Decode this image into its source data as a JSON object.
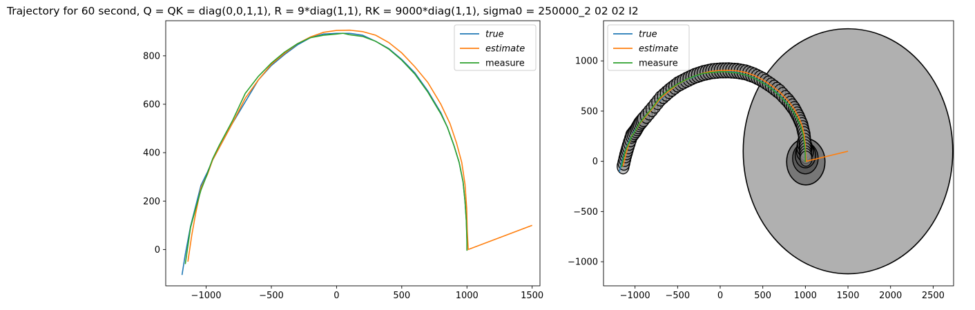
{
  "figure": {
    "title": "Trajectory for 60 second, Q = QK = diag(0,0,1,1), R = 9*diag(1,1), RK = 9000*diag(1,1), sigma0 = 250000_2 02 02 I2"
  },
  "colors": {
    "true": "#1f77b4",
    "estimate": "#ff7f0e",
    "measure": "#2ca02c",
    "ellipse_fill": "#b0b0b0",
    "ellipse_edge": "#000000"
  },
  "chart_data": [
    {
      "type": "line",
      "title": "",
      "xlabel": "",
      "ylabel": "",
      "xlim": [
        -1310,
        1560
      ],
      "ylim": [
        -150,
        945
      ],
      "xticks": [
        -1000,
        -500,
        0,
        500,
        1000,
        1500
      ],
      "xtick_labels": [
        "−1000",
        "−500",
        "0",
        "500",
        "1000",
        "1500"
      ],
      "yticks": [
        0,
        200,
        400,
        600,
        800
      ],
      "ytick_labels": [
        "0",
        "200",
        "400",
        "600",
        "800"
      ],
      "legend": {
        "position": "top-right",
        "entries": [
          "true",
          "estimate",
          "measure"
        ],
        "italic": [
          true,
          true,
          false
        ]
      },
      "series": [
        {
          "name": "true",
          "key": "true",
          "points": [
            [
              -1185,
              -105
            ],
            [
              -1160,
              -20
            ],
            [
              -1120,
              95
            ],
            [
              -1080,
              180
            ],
            [
              -1040,
              265
            ],
            [
              -990,
              320
            ],
            [
              -950,
              370
            ],
            [
              -900,
              420
            ],
            [
              -800,
              520
            ],
            [
              -700,
              610
            ],
            [
              -600,
              700
            ],
            [
              -500,
              760
            ],
            [
              -400,
              805
            ],
            [
              -300,
              845
            ],
            [
              -200,
              875
            ],
            [
              -100,
              890
            ],
            [
              0,
              893
            ],
            [
              100,
              893
            ],
            [
              200,
              885
            ],
            [
              300,
              860
            ],
            [
              400,
              830
            ],
            [
              500,
              785
            ],
            [
              600,
              730
            ],
            [
              700,
              655
            ],
            [
              800,
              565
            ],
            [
              850,
              505
            ],
            [
              900,
              430
            ],
            [
              940,
              360
            ],
            [
              970,
              280
            ],
            [
              985,
              200
            ],
            [
              995,
              120
            ],
            [
              1000,
              40
            ],
            [
              1000,
              0
            ]
          ]
        },
        {
          "name": "estimate",
          "key": "estimate",
          "points": [
            [
              -1140,
              -50
            ],
            [
              -1110,
              60
            ],
            [
              -1080,
              150
            ],
            [
              -1040,
              255
            ],
            [
              -990,
              310
            ],
            [
              -950,
              370
            ],
            [
              -900,
              420
            ],
            [
              -800,
              520
            ],
            [
              -700,
              625
            ],
            [
              -600,
              700
            ],
            [
              -500,
              765
            ],
            [
              -400,
              810
            ],
            [
              -300,
              850
            ],
            [
              -200,
              878
            ],
            [
              -100,
              897
            ],
            [
              0,
              905
            ],
            [
              100,
              906
            ],
            [
              200,
              900
            ],
            [
              300,
              885
            ],
            [
              400,
              855
            ],
            [
              500,
              812
            ],
            [
              600,
              755
            ],
            [
              700,
              690
            ],
            [
              800,
              600
            ],
            [
              870,
              520
            ],
            [
              920,
              440
            ],
            [
              960,
              360
            ],
            [
              985,
              270
            ],
            [
              998,
              170
            ],
            [
              1002,
              80
            ],
            [
              1010,
              0
            ],
            [
              1500,
              100
            ]
          ]
        },
        {
          "name": "measure",
          "key": "measure",
          "points": [
            [
              -1160,
              -60
            ],
            [
              -1120,
              90
            ],
            [
              -1080,
              170
            ],
            [
              -1040,
              245
            ],
            [
              -1000,
              300
            ],
            [
              -950,
              375
            ],
            [
              -900,
              430
            ],
            [
              -800,
              530
            ],
            [
              -700,
              645
            ],
            [
              -600,
              715
            ],
            [
              -500,
              770
            ],
            [
              -400,
              815
            ],
            [
              -300,
              850
            ],
            [
              -200,
              875
            ],
            [
              -100,
              885
            ],
            [
              0,
              890
            ],
            [
              50,
              893
            ],
            [
              100,
              887
            ],
            [
              200,
              880
            ],
            [
              300,
              860
            ],
            [
              400,
              828
            ],
            [
              500,
              782
            ],
            [
              600,
              725
            ],
            [
              700,
              650
            ],
            [
              800,
              560
            ],
            [
              850,
              505
            ],
            [
              900,
              430
            ],
            [
              940,
              360
            ],
            [
              970,
              280
            ],
            [
              985,
              200
            ],
            [
              995,
              120
            ],
            [
              1000,
              30
            ],
            [
              1000,
              -5
            ]
          ]
        }
      ]
    },
    {
      "type": "line",
      "title": "",
      "xlabel": "",
      "ylabel": "",
      "xlim": [
        -1370,
        2740
      ],
      "ylim": [
        -1240,
        1400
      ],
      "xticks": [
        -1000,
        -500,
        0,
        500,
        1000,
        1500,
        2000,
        2500
      ],
      "xtick_labels": [
        "−1000",
        "−500",
        "0",
        "500",
        "1000",
        "1500",
        "2000",
        "2500"
      ],
      "yticks": [
        -1000,
        -500,
        0,
        500,
        1000
      ],
      "ytick_labels": [
        "−1000",
        "−500",
        "0",
        "500",
        "1000"
      ],
      "legend": {
        "position": "top-left",
        "entries": [
          "true",
          "estimate",
          "measure"
        ],
        "italic": [
          true,
          true,
          false
        ]
      },
      "covariance_ellipses": {
        "large": {
          "cx": 1500,
          "cy": 100,
          "rx": 1230,
          "ry": 1220
        },
        "medium": {
          "cx": 1005,
          "cy": -5,
          "rx": 225,
          "ry": 230
        },
        "small": [
          {
            "cx": 1000,
            "cy": 30,
            "rx": 150,
            "ry": 155
          },
          {
            "cx": 1000,
            "cy": 60,
            "rx": 120,
            "ry": 125
          },
          {
            "cx": 995,
            "cy": 100,
            "rx": 100,
            "ry": 105
          },
          {
            "cx": 990,
            "cy": 140,
            "rx": 90,
            "ry": 95
          },
          {
            "cx": 985,
            "cy": 180,
            "rx": 80,
            "ry": 85
          }
        ],
        "chain_radius_x": 70,
        "chain_radius_y": 75
      },
      "series": [
        {
          "name": "true",
          "key": "true",
          "points": [
            [
              -1185,
              -105
            ],
            [
              -1160,
              -20
            ],
            [
              -1120,
              95
            ],
            [
              -1080,
              180
            ],
            [
              -1040,
              265
            ],
            [
              -990,
              320
            ],
            [
              -950,
              370
            ],
            [
              -900,
              420
            ],
            [
              -800,
              520
            ],
            [
              -700,
              610
            ],
            [
              -600,
              700
            ],
            [
              -500,
              760
            ],
            [
              -400,
              805
            ],
            [
              -300,
              845
            ],
            [
              -200,
              875
            ],
            [
              -100,
              890
            ],
            [
              0,
              893
            ],
            [
              100,
              893
            ],
            [
              200,
              885
            ],
            [
              300,
              860
            ],
            [
              400,
              830
            ],
            [
              500,
              785
            ],
            [
              600,
              730
            ],
            [
              700,
              655
            ],
            [
              800,
              565
            ],
            [
              850,
              505
            ],
            [
              900,
              430
            ],
            [
              940,
              360
            ],
            [
              970,
              280
            ],
            [
              985,
              200
            ],
            [
              995,
              120
            ],
            [
              1000,
              40
            ],
            [
              1000,
              0
            ]
          ]
        },
        {
          "name": "estimate",
          "key": "estimate",
          "points": [
            [
              -1140,
              -50
            ],
            [
              -1110,
              60
            ],
            [
              -1080,
              150
            ],
            [
              -1040,
              255
            ],
            [
              -990,
              310
            ],
            [
              -950,
              370
            ],
            [
              -900,
              420
            ],
            [
              -800,
              520
            ],
            [
              -700,
              625
            ],
            [
              -600,
              700
            ],
            [
              -500,
              765
            ],
            [
              -400,
              810
            ],
            [
              -300,
              850
            ],
            [
              -200,
              878
            ],
            [
              -100,
              897
            ],
            [
              0,
              905
            ],
            [
              100,
              906
            ],
            [
              200,
              900
            ],
            [
              300,
              885
            ],
            [
              400,
              855
            ],
            [
              500,
              812
            ],
            [
              600,
              755
            ],
            [
              700,
              690
            ],
            [
              800,
              600
            ],
            [
              870,
              520
            ],
            [
              920,
              440
            ],
            [
              960,
              360
            ],
            [
              985,
              270
            ],
            [
              998,
              170
            ],
            [
              1002,
              80
            ],
            [
              1010,
              0
            ],
            [
              1500,
              100
            ]
          ]
        },
        {
          "name": "measure",
          "key": "measure",
          "points": [
            [
              -1160,
              -60
            ],
            [
              -1120,
              90
            ],
            [
              -1080,
              170
            ],
            [
              -1040,
              245
            ],
            [
              -1000,
              300
            ],
            [
              -950,
              375
            ],
            [
              -900,
              430
            ],
            [
              -800,
              530
            ],
            [
              -700,
              645
            ],
            [
              -600,
              715
            ],
            [
              -500,
              770
            ],
            [
              -400,
              815
            ],
            [
              -300,
              850
            ],
            [
              -200,
              875
            ],
            [
              -100,
              885
            ],
            [
              0,
              890
            ],
            [
              50,
              893
            ],
            [
              100,
              887
            ],
            [
              200,
              880
            ],
            [
              300,
              860
            ],
            [
              400,
              828
            ],
            [
              500,
              782
            ],
            [
              600,
              725
            ],
            [
              700,
              650
            ],
            [
              800,
              560
            ],
            [
              850,
              505
            ],
            [
              900,
              430
            ],
            [
              940,
              360
            ],
            [
              970,
              280
            ],
            [
              985,
              200
            ],
            [
              995,
              120
            ],
            [
              1000,
              30
            ],
            [
              1000,
              -5
            ]
          ]
        }
      ]
    }
  ]
}
